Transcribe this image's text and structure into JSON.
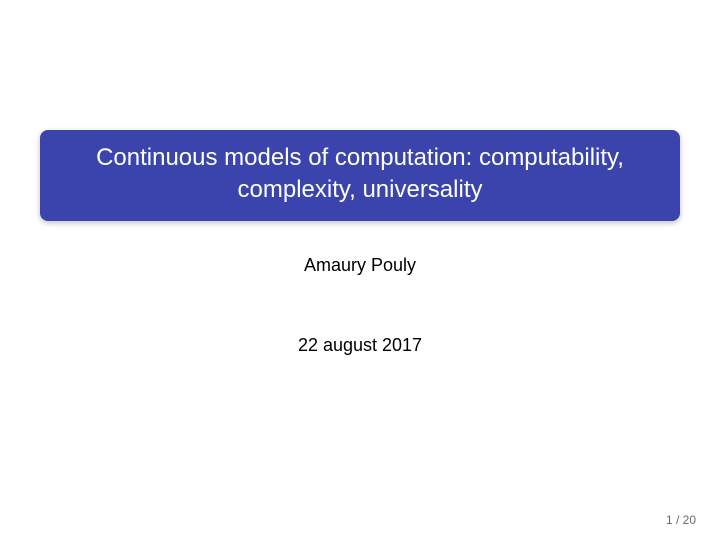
{
  "slide": {
    "title_line1": "Continuous models of computation: computability,",
    "title_line2": "complexity, universality",
    "author": "Amaury Pouly",
    "date": "22 august 2017",
    "page_current": 1,
    "page_total": 20,
    "page_label": "1 / 20"
  },
  "style": {
    "title_bg": "#3b44ac",
    "title_color": "#ffffff",
    "title_fontsize": 24,
    "title_radius": 8,
    "title_shadow": "0 2px 6px rgba(0,0,0,0.25)",
    "body_color": "#000000",
    "body_fontsize": 18,
    "footer_color": "#6a6a6a",
    "footer_fontsize": 12,
    "background": "#ffffff",
    "slide_width": 720,
    "slide_height": 541
  }
}
